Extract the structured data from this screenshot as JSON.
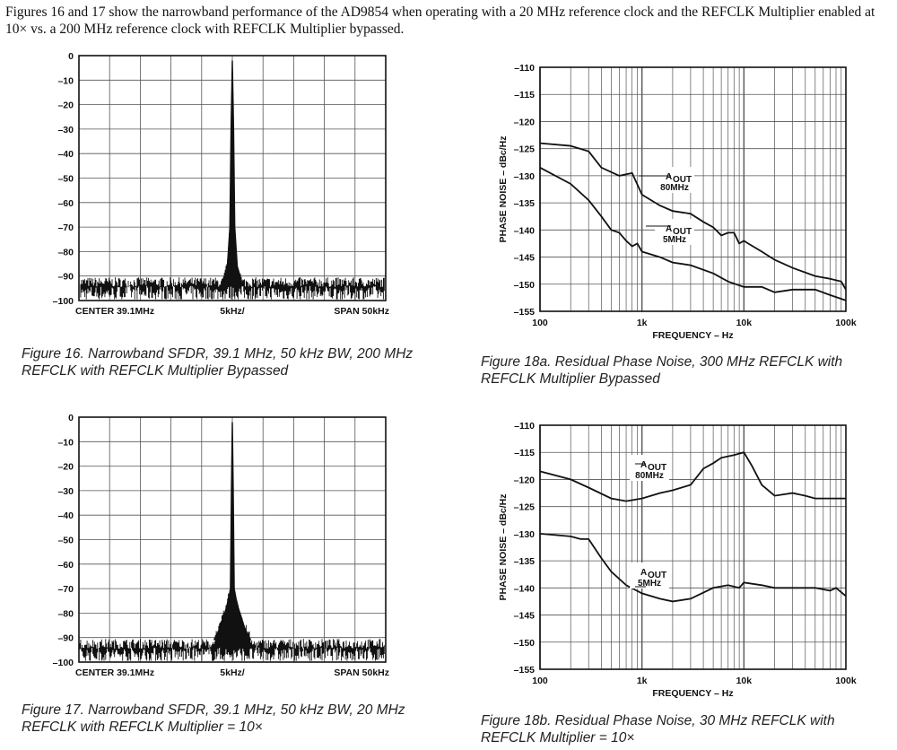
{
  "intro_text": "Figures 16 and 17 show the narrowband performance of the AD9854 when operating with a 20 MHz reference clock and the REFCLK Multiplier enabled at 10× vs. a 200 MHz reference clock with REFCLK Multiplier bypassed.",
  "captions": {
    "fig16": "Figure 16. Narrowband SFDR, 39.1 MHz, 50 kHz BW, 200 MHz REFCLK with REFCLK Multiplier Bypassed",
    "fig17": "Figure 17. Narrowband SFDR, 39.1 MHz, 50 kHz BW, 20 MHz REFCLK with REFCLK Multiplier = 10×",
    "fig18a": "Figure 18a. Residual Phase Noise, 300 MHz REFCLK with REFCLK Multiplier Bypassed",
    "fig18b": "Figure 18b. Residual Phase Noise, 30 MHz REFCLK with REFCLK Multiplier = 10×"
  },
  "chart_data": [
    {
      "id": "fig16",
      "type": "line",
      "ylim": [
        -100,
        0
      ],
      "y_ticks": [
        "0",
        "–10",
        "–20",
        "–30",
        "–40",
        "–50",
        "–60",
        "–70",
        "–80",
        "–90",
        "–100"
      ],
      "x_labels": [
        "CENTER 39.1MHz",
        "5kHz/",
        "SPAN 50kHz"
      ],
      "xlim": [
        -25,
        25
      ],
      "x_unit": "kHz offset",
      "noise_floor": -93,
      "series": [
        {
          "x": [
            -1.5,
            -0.8,
            -0.4,
            -0.2,
            0,
            0.2,
            0.4,
            0.8,
            1.5
          ],
          "y": [
            -92,
            -86,
            -70,
            -30,
            -2,
            -30,
            -70,
            -86,
            -92
          ]
        }
      ],
      "grid": true
    },
    {
      "id": "fig17",
      "type": "line",
      "ylim": [
        -100,
        0
      ],
      "y_ticks": [
        "0",
        "–10",
        "–20",
        "–30",
        "–40",
        "–50",
        "–60",
        "–70",
        "–80",
        "–90",
        "–100"
      ],
      "x_labels": [
        "CENTER 39.1MHz",
        "5kHz/",
        "SPAN 50kHz"
      ],
      "xlim": [
        -25,
        25
      ],
      "x_unit": "kHz offset",
      "noise_floor": -93,
      "series": [
        {
          "x": [
            -3.0,
            -2.0,
            -1.0,
            -0.6,
            -0.3,
            -0.15,
            0,
            0.15,
            0.3,
            0.6,
            1.0,
            2.0,
            3.0
          ],
          "y": [
            -91,
            -86,
            -78,
            -74,
            -70,
            -30,
            -2,
            -30,
            -70,
            -74,
            -78,
            -86,
            -91
          ]
        }
      ],
      "grid": true
    },
    {
      "id": "fig18a",
      "type": "line",
      "log_x": true,
      "xlim": [
        100,
        100000
      ],
      "ylim": [
        -155,
        -110
      ],
      "x_ticks": [
        "100",
        "1k",
        "10k",
        "100k"
      ],
      "y_ticks": [
        "–110",
        "–115",
        "–120",
        "–125",
        "–130",
        "–135",
        "–140",
        "–145",
        "–150",
        "–155"
      ],
      "xlabel": "FREQUENCY – Hz",
      "ylabel": "PHASE NOISE – dBc/Hz",
      "series": [
        {
          "annotation": [
            "A",
            "OUT",
            "80MHz"
          ],
          "x": [
            100,
            200,
            300,
            400,
            600,
            800,
            1000,
            1500,
            2000,
            3000,
            4000,
            5000,
            6000,
            7000,
            8000,
            9000,
            10000,
            11000,
            15000,
            20000,
            30000,
            50000,
            70000,
            90000,
            100000
          ],
          "y": [
            -124,
            -124.5,
            -125.5,
            -128.5,
            -130,
            -129.5,
            -133.5,
            -135.5,
            -136.5,
            -137,
            -138.5,
            -139.5,
            -141,
            -140.5,
            -140.5,
            -142.5,
            -142,
            -142.5,
            -144,
            -145.5,
            -147,
            -148.5,
            -149,
            -149.5,
            -151
          ]
        },
        {
          "annotation": [
            "A",
            "OUT",
            "5MHz"
          ],
          "x": [
            100,
            200,
            300,
            400,
            500,
            600,
            700,
            800,
            900,
            1000,
            1500,
            2000,
            3000,
            5000,
            7000,
            10000,
            15000,
            20000,
            30000,
            50000,
            70000,
            100000
          ],
          "y": [
            -128.5,
            -131.5,
            -134.5,
            -137.5,
            -140,
            -140.5,
            -142,
            -143,
            -142.5,
            -144,
            -145,
            -146,
            -146.5,
            -148,
            -149.5,
            -150.5,
            -150.5,
            -151.5,
            -151,
            -151,
            -152,
            -153
          ]
        }
      ],
      "grid": true
    },
    {
      "id": "fig18b",
      "type": "line",
      "log_x": true,
      "xlim": [
        100,
        100000
      ],
      "ylim": [
        -155,
        -110
      ],
      "x_ticks": [
        "100",
        "1k",
        "10k",
        "100k"
      ],
      "y_ticks": [
        "–110",
        "–115",
        "–120",
        "–125",
        "–130",
        "–135",
        "–140",
        "–145",
        "–150",
        "–155"
      ],
      "xlabel": "FREQUENCY – Hz",
      "ylabel": "PHASE NOISE – dBc/Hz",
      "series": [
        {
          "annotation": [
            "A",
            "OUT",
            "80MHz"
          ],
          "x": [
            100,
            200,
            300,
            500,
            700,
            1000,
            1500,
            2000,
            3000,
            4000,
            5000,
            6000,
            8000,
            10000,
            12000,
            15000,
            20000,
            30000,
            40000,
            50000,
            70000,
            100000
          ],
          "y": [
            -118.5,
            -120,
            -121.5,
            -123.5,
            -124,
            -123.5,
            -122.5,
            -122,
            -121,
            -118,
            -117,
            -116,
            -115.5,
            -115,
            -117.5,
            -121,
            -123,
            -122.5,
            -123,
            -123.5,
            -123.5,
            -123.5
          ]
        },
        {
          "annotation": [
            "A",
            "OUT",
            "5MHz"
          ],
          "x": [
            100,
            200,
            250,
            300,
            400,
            500,
            700,
            1000,
            1500,
            2000,
            3000,
            5000,
            7000,
            9000,
            10000,
            15000,
            20000,
            30000,
            50000,
            70000,
            80000,
            100000
          ],
          "y": [
            -130,
            -130.5,
            -131,
            -131,
            -134.5,
            -137,
            -139.5,
            -141,
            -142,
            -142.5,
            -142,
            -140,
            -139.5,
            -140,
            -139,
            -139.5,
            -140,
            -140,
            -140,
            -140.5,
            -140,
            -141.5
          ]
        }
      ],
      "grid": true
    }
  ]
}
